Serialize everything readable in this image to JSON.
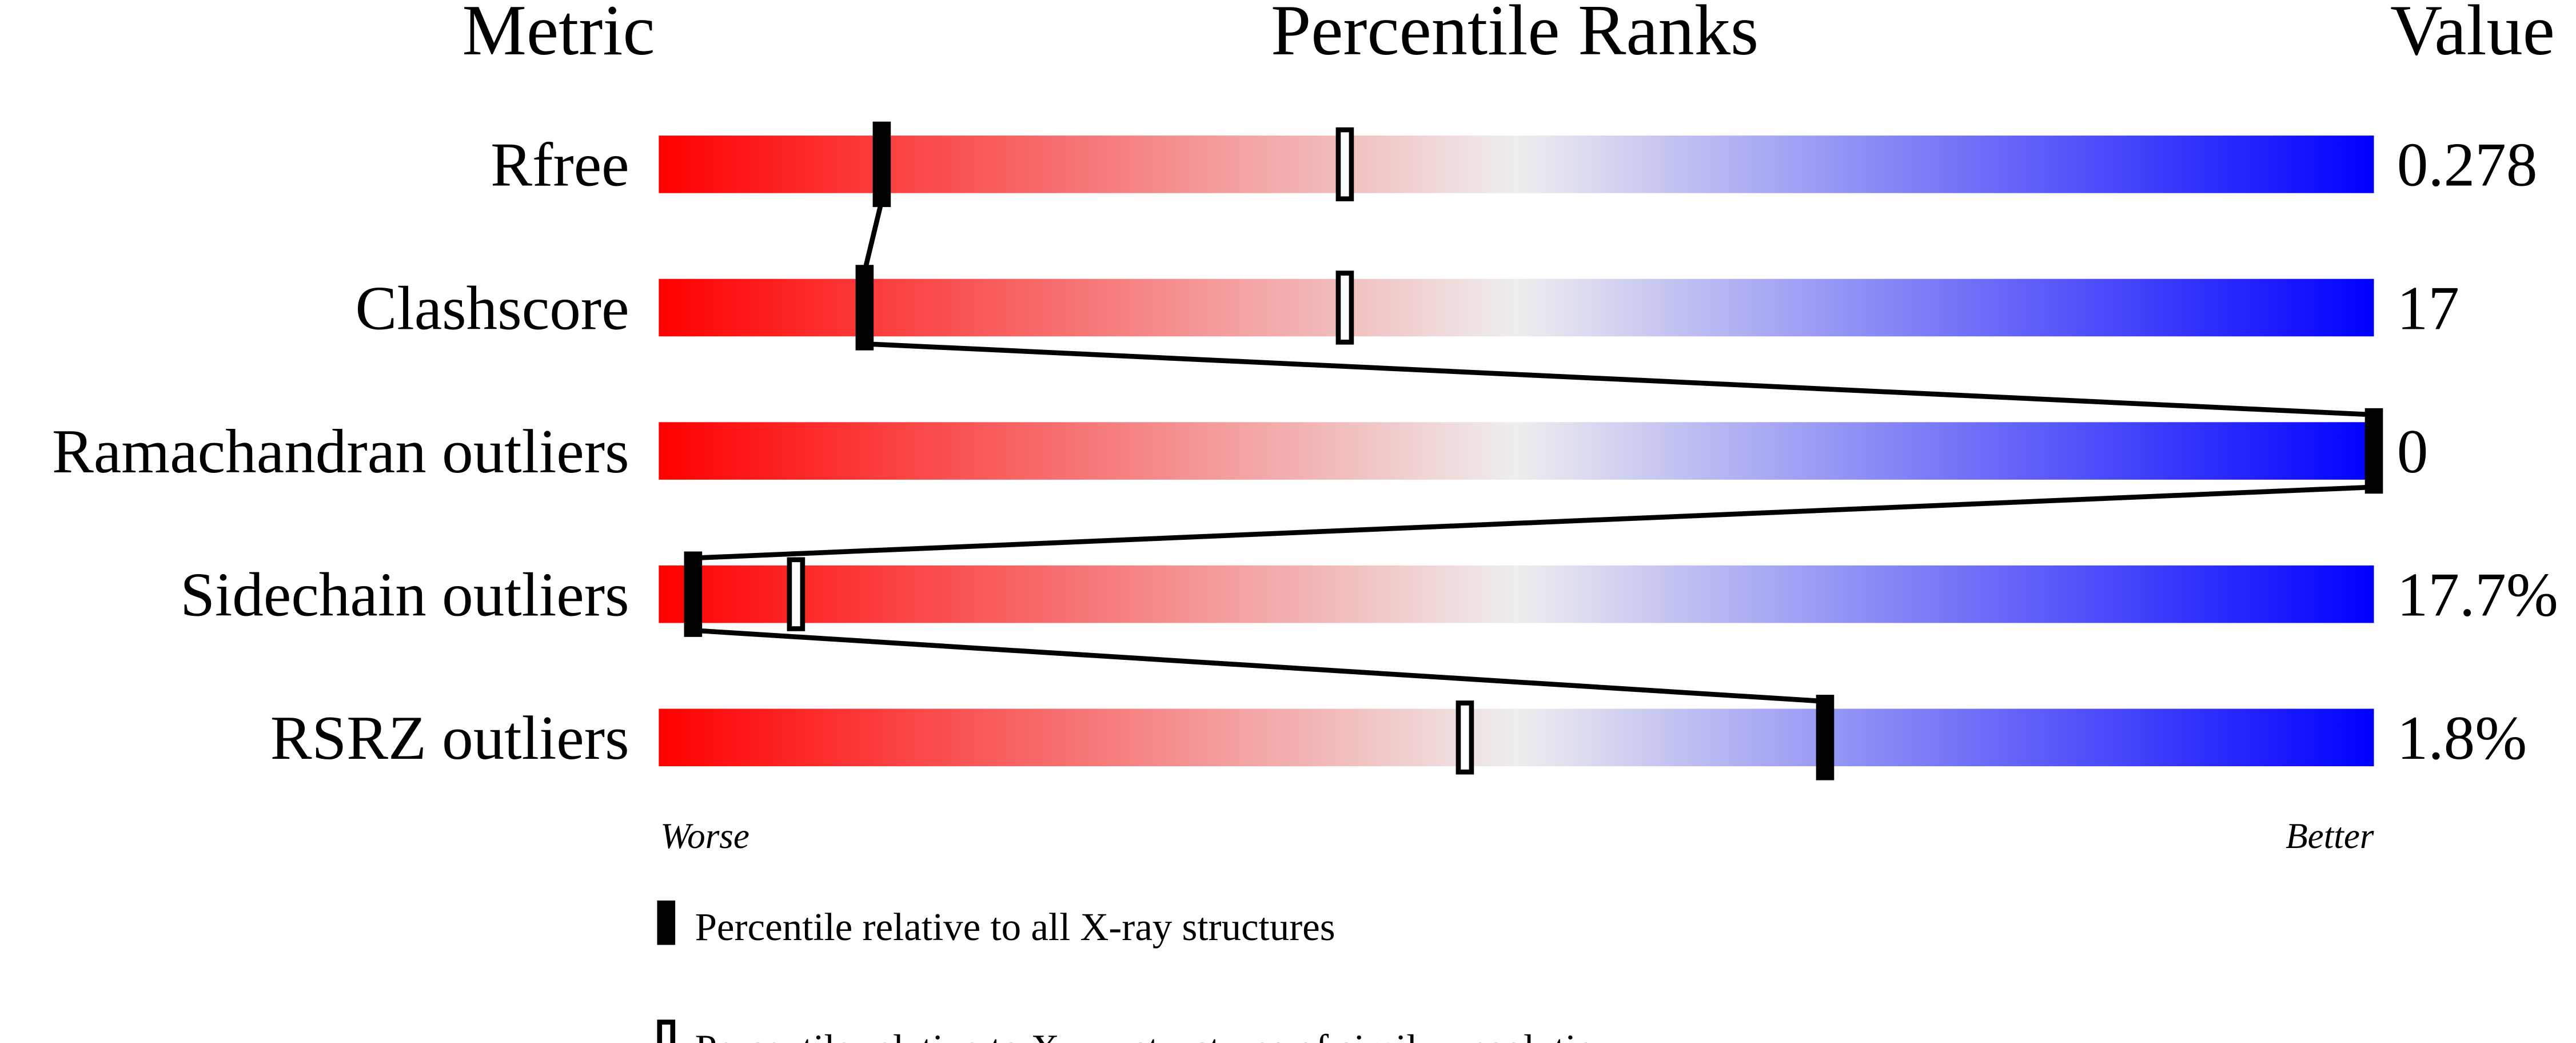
{
  "chart_data": {
    "type": "bar",
    "headers": {
      "metric": "Metric",
      "ranks": "Percentile Ranks",
      "value": "Value"
    },
    "xlim": [
      0,
      100
    ],
    "axis_labels": {
      "worse": "Worse",
      "better": "Better"
    },
    "colors": {
      "worse": "#ff0000",
      "middle": "#eeeeee",
      "better": "#0000ff"
    },
    "rows": [
      {
        "metric": "Rfree",
        "value": "0.278",
        "percentile_all": 13,
        "percentile_similar": 40
      },
      {
        "metric": "Clashscore",
        "value": "17",
        "percentile_all": 12,
        "percentile_similar": 40
      },
      {
        "metric": "Ramachandran outliers",
        "value": "0",
        "percentile_all": 100,
        "percentile_similar": null
      },
      {
        "metric": "Sidechain outliers",
        "value": "17.7%",
        "percentile_all": 2,
        "percentile_similar": 8
      },
      {
        "metric": "RSRZ outliers",
        "value": "1.8%",
        "percentile_all": 68,
        "percentile_similar": 47
      }
    ],
    "legend": [
      {
        "marker": "filled",
        "label": "Percentile relative to all X-ray structures"
      },
      {
        "marker": "hollow",
        "label": "Percentile relative to X-ray structures of similar resolution"
      }
    ]
  }
}
